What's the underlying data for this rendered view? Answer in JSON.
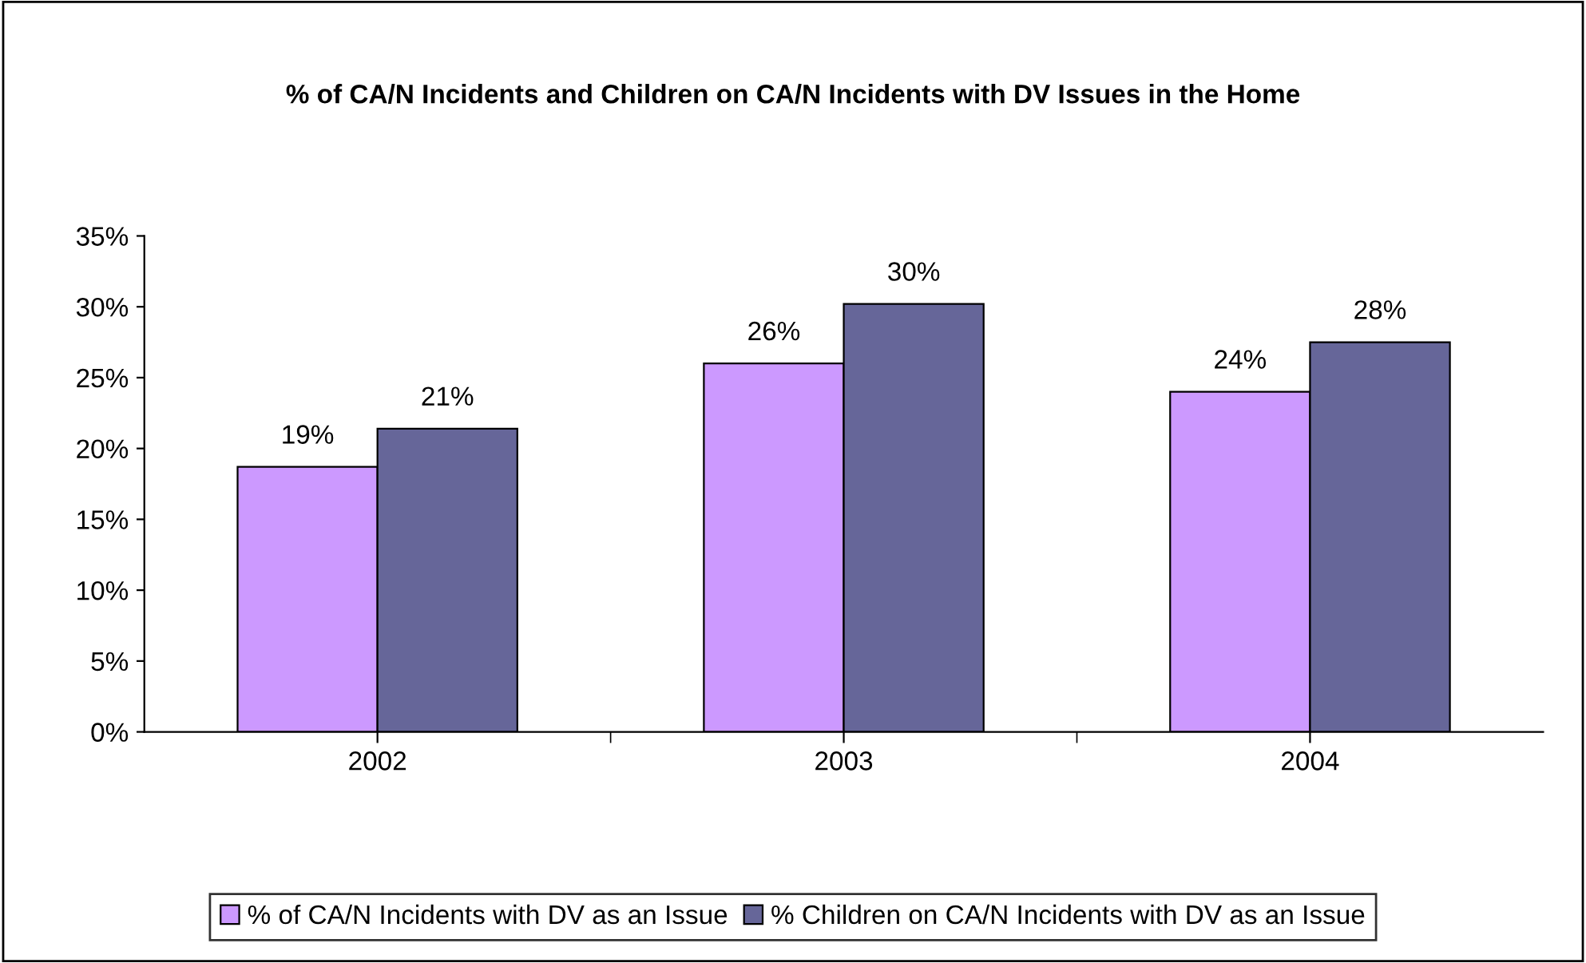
{
  "chart_data": {
    "type": "bar",
    "title": "% of CA/N Incidents and Children on CA/N Incidents with DV Issues in the Home",
    "categories": [
      "2002",
      "2003",
      "2004"
    ],
    "series": [
      {
        "name": "% of CA/N Incidents with DV as an Issue",
        "color": "#cc99ff",
        "values": [
          18.7,
          26.0,
          24.0
        ],
        "value_labels": [
          "19%",
          "26%",
          "24%"
        ]
      },
      {
        "name": "% Children on CA/N Incidents with DV as an Issue",
        "color": "#666699",
        "values": [
          21.4,
          30.2,
          27.5
        ],
        "value_labels": [
          "21%",
          "30%",
          "28%"
        ]
      }
    ],
    "ylim": [
      0,
      35
    ],
    "yticks": [
      {
        "value": 0,
        "label": "0%"
      },
      {
        "value": 5,
        "label": "5%"
      },
      {
        "value": 10,
        "label": "10%"
      },
      {
        "value": 15,
        "label": "15%"
      },
      {
        "value": 20,
        "label": "20%"
      },
      {
        "value": 25,
        "label": "25%"
      },
      {
        "value": 30,
        "label": "30%"
      },
      {
        "value": 35,
        "label": "35%"
      }
    ],
    "grid": false,
    "legend": "bottom"
  }
}
